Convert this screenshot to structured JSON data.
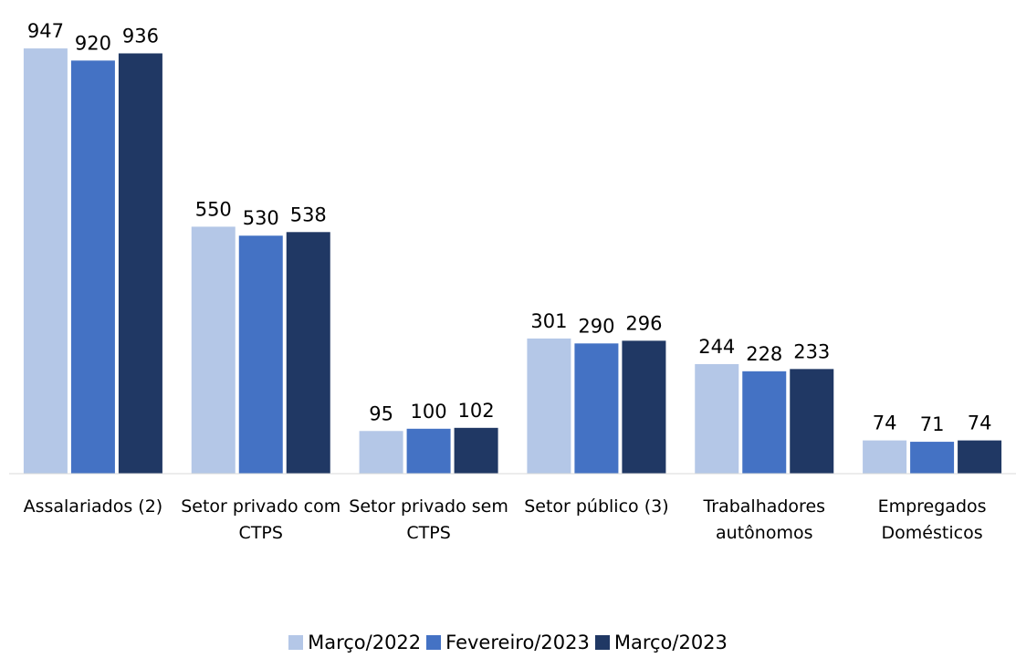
{
  "chart_data": {
    "type": "bar",
    "categories": [
      "Assalariados (2)",
      "Setor privado com CTPS",
      "Setor privado sem CTPS",
      "Setor público (3)",
      "Trabalhadores autônomos",
      "Empregados Domésticos"
    ],
    "series": [
      {
        "name": "Março/2022",
        "color": "#b4c7e7",
        "values": [
          947,
          550,
          95,
          301,
          244,
          74
        ]
      },
      {
        "name": "Fevereiro/2023",
        "color": "#4472c4",
        "values": [
          920,
          530,
          100,
          290,
          228,
          71
        ]
      },
      {
        "name": "Março/2023",
        "color": "#203864",
        "values": [
          936,
          538,
          102,
          296,
          233,
          74
        ]
      }
    ],
    "ylim": [
      0,
      1000
    ],
    "legend": "bottom"
  }
}
